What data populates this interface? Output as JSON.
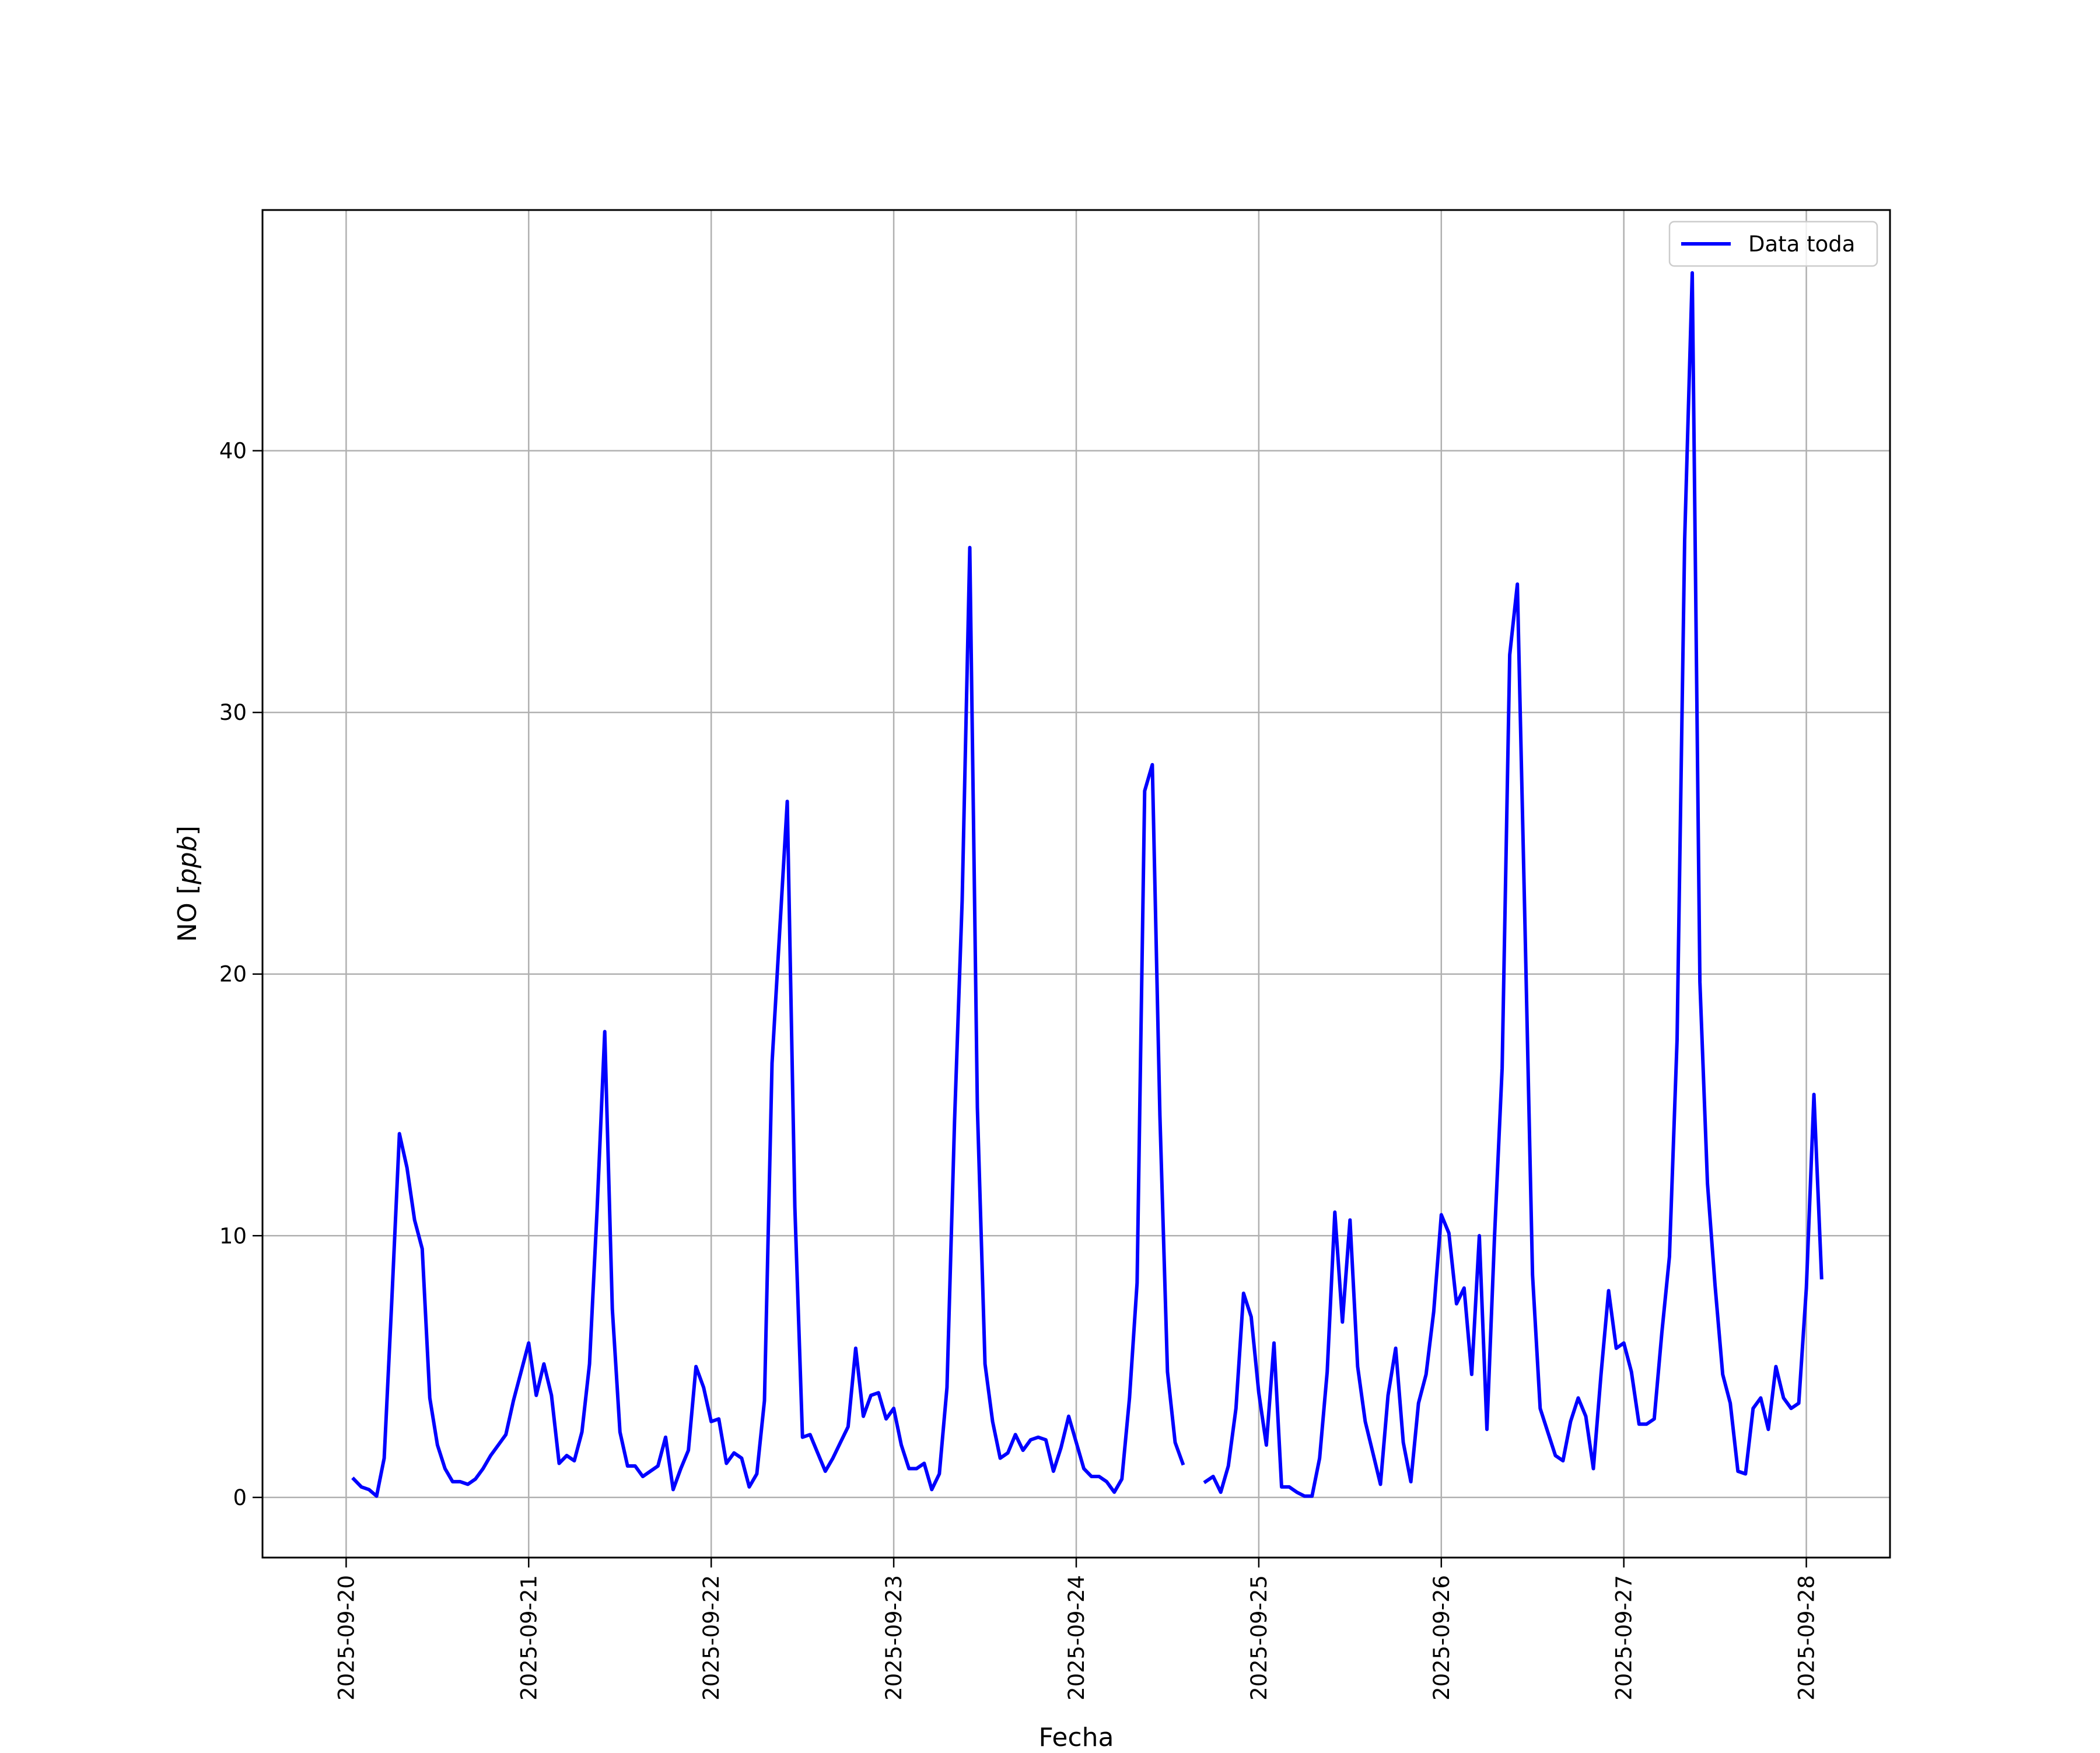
{
  "chart_data": {
    "type": "line",
    "xlabel": "Fecha",
    "ylabel_main": "NO",
    "ylabel_unit": "ppb",
    "x_ticks": [
      "2025-09-20",
      "2025-09-21",
      "2025-09-22",
      "2025-09-23",
      "2025-09-24",
      "2025-09-25",
      "2025-09-26",
      "2025-09-27",
      "2025-09-28"
    ],
    "y_ticks": [
      0,
      10,
      20,
      30,
      40
    ],
    "xlim": [
      "2025-09-19T13:00",
      "2025-09-28T11:00"
    ],
    "ylim": [
      -2.3,
      49.2
    ],
    "grid": true,
    "legend_position": "upper right",
    "colors": {
      "series": "#0000ff",
      "grid": "#b0b0b0",
      "axes": "#000000"
    },
    "series": [
      {
        "name": "Data toda",
        "x_start": "2025-09-20T01:00",
        "step_hours": 1,
        "values": [
          0.7,
          0.4,
          0.3,
          0.05,
          1.5,
          7.5,
          13.9,
          12.6,
          10.6,
          9.5,
          3.8,
          2.0,
          1.1,
          0.6,
          0.6,
          0.5,
          0.7,
          1.1,
          1.6,
          2.0,
          2.4,
          3.7,
          4.8,
          5.9,
          3.9,
          5.1,
          3.9,
          1.3,
          1.6,
          1.4,
          2.5,
          5.1,
          11.0,
          17.8,
          7.2,
          2.5,
          1.2,
          1.2,
          0.8,
          1.0,
          1.2,
          2.3,
          0.3,
          1.1,
          1.8,
          5.0,
          4.2,
          2.9,
          3.0,
          1.3,
          1.7,
          1.5,
          0.4,
          0.9,
          3.7,
          16.6,
          21.6,
          26.6,
          11.1,
          2.3,
          2.4,
          1.7,
          1.0,
          1.5,
          2.1,
          2.7,
          5.7,
          3.1,
          3.9,
          4.0,
          3.0,
          3.4,
          2.0,
          1.1,
          1.1,
          1.3,
          0.3,
          0.9,
          4.2,
          14.4,
          22.8,
          36.3,
          14.9,
          5.1,
          2.9,
          1.5,
          1.7,
          2.4,
          1.8,
          2.2,
          2.3,
          2.2,
          1.0,
          1.9,
          3.1,
          2.1,
          1.1,
          0.8,
          0.8,
          0.6,
          0.2,
          0.7,
          3.8,
          8.2,
          27.0,
          28.0,
          14.6,
          4.8,
          2.1,
          1.3,
          null,
          null,
          0.6,
          0.8,
          0.2,
          1.2,
          3.4,
          7.8,
          6.9,
          4.0,
          2.0,
          5.9,
          0.4,
          0.4,
          0.2,
          0.05,
          0.05,
          1.5,
          4.8,
          10.9,
          6.7,
          10.6,
          5.0,
          2.9,
          1.7,
          0.5,
          3.9,
          5.7,
          2.1,
          0.6,
          3.6,
          4.7,
          7.1,
          10.8,
          10.1,
          7.4,
          8.0,
          4.7,
          10.0,
          2.6,
          10.0,
          16.4,
          32.2,
          34.9,
          21.9,
          8.5,
          3.4,
          2.5,
          1.6,
          1.4,
          2.9,
          3.8,
          3.1,
          1.1,
          4.7,
          7.9,
          5.7,
          5.9,
          4.8,
          2.8,
          2.8,
          3.0,
          6.3,
          9.2,
          17.5,
          36.6,
          46.8,
          19.7,
          12.0,
          8.1,
          4.7,
          3.6,
          1.0,
          0.9,
          3.4,
          3.8,
          2.6,
          5.0,
          3.8,
          3.4,
          3.6,
          8.0,
          15.4,
          8.4
        ]
      }
    ]
  }
}
